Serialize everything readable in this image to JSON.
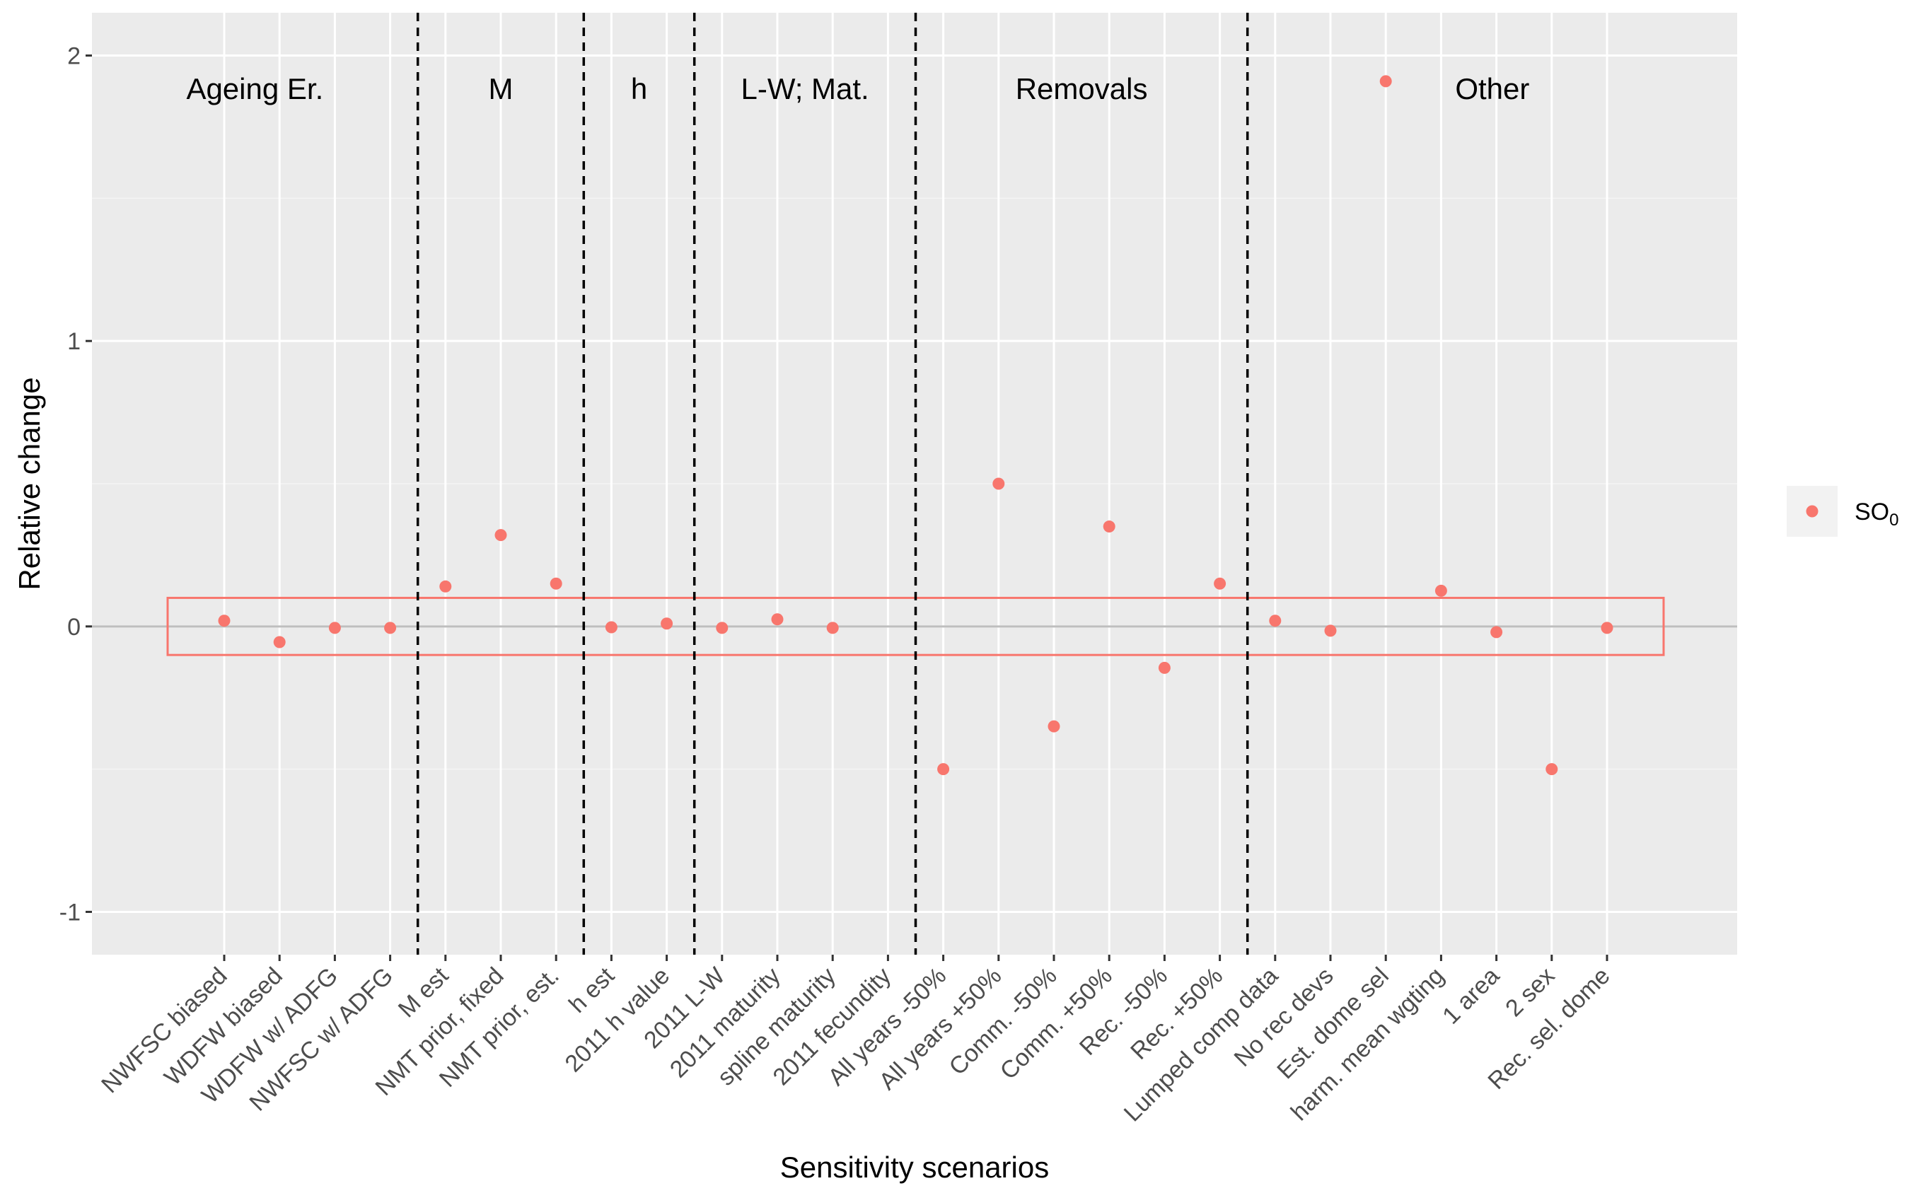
{
  "chart_data": {
    "type": "scatter",
    "xlabel": "Sensitivity scenarios",
    "ylabel": "Relative change",
    "ylim": [
      -1.15,
      2.15
    ],
    "yticks": [
      -1,
      0,
      1,
      2
    ],
    "grid": true,
    "legend_position": "right",
    "categories": [
      "NWFSC biased",
      "WDFW biased",
      "WDFW w/ ADFG",
      "NWFSC w/ ADFG",
      "M est",
      "NMT prior, fixed",
      "NMT prior, est.",
      "h est",
      "2011 h value",
      "2011 L-W",
      "2011 maturity",
      "spline maturity",
      "2011 fecundity",
      "All years -50%",
      "All years +50%",
      "Comm. -50%",
      "Comm. +50%",
      "Rec. -50%",
      "Rec. +50%",
      "Lumped comp data",
      "No rec devs",
      "Est. dome sel",
      "harm. mean wgting",
      "1 area",
      "2 sex",
      "Rec. sel. dome"
    ],
    "series": [
      {
        "name": "SO",
        "name_subscript": "0",
        "color": "#F8766D",
        "values": [
          0.02,
          -0.055,
          -0.005,
          -0.005,
          0.14,
          0.32,
          0.15,
          -0.003,
          0.01,
          -0.005,
          0.025,
          -0.005,
          null,
          -0.5,
          0.5,
          -0.35,
          0.35,
          -0.145,
          0.15,
          0.02,
          -0.015,
          1.91,
          0.125,
          -0.02,
          -0.5,
          -0.005
        ]
      }
    ],
    "group_separators_after_index": [
      3,
      6,
      8,
      12,
      18
    ],
    "groups": [
      {
        "label": "Ageing Er.",
        "from": 0,
        "to": 3
      },
      {
        "label": "M",
        "from": 4,
        "to": 6
      },
      {
        "label": "h",
        "from": 7,
        "to": 8
      },
      {
        "label": "L-W; Mat.",
        "from": 9,
        "to": 12
      },
      {
        "label": "Removals",
        "from": 13,
        "to": 18
      },
      {
        "label": "Other",
        "from": 19,
        "to": 25
      }
    ],
    "highlight_band": {
      "ymin": -0.1,
      "ymax": 0.1,
      "color": "#F8766D"
    },
    "reference_line_y": 0
  }
}
